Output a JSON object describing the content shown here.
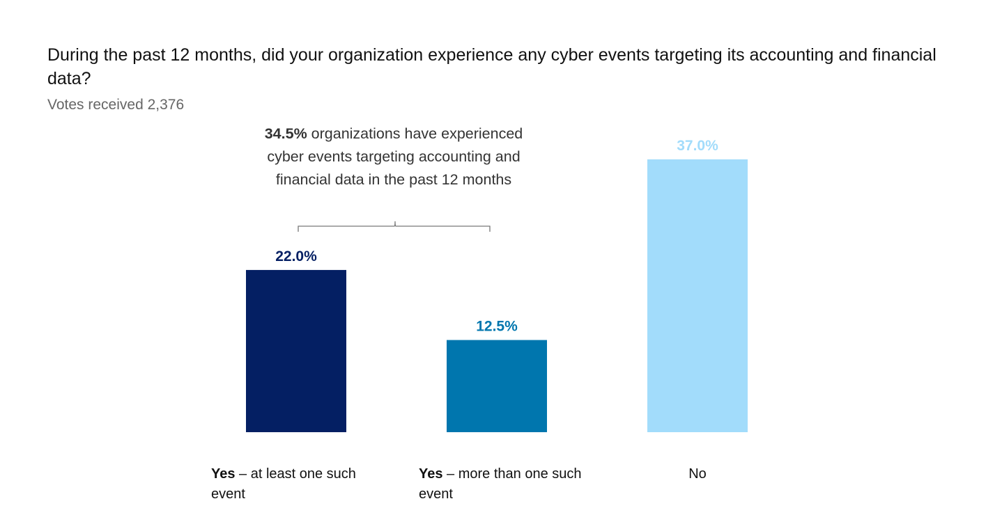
{
  "chart_data": {
    "type": "bar",
    "title": "During the past 12 months, did your organization experience any cyber events targeting its accounting and financial data?",
    "subtitle": "Votes received 2,376",
    "categories": [
      {
        "bold": "Yes",
        "rest": " – at least one such event"
      },
      {
        "bold": "Yes",
        "rest": " – more than one such event"
      },
      {
        "bold": "",
        "rest": "No"
      }
    ],
    "values": [
      22.0,
      12.5,
      37.0
    ],
    "value_labels": [
      "22.0%",
      "12.5%",
      "37.0%"
    ],
    "colors": [
      "#041f63",
      "#0076ae",
      "#a2dcfb"
    ],
    "ylim": [
      0,
      40
    ],
    "grid": false,
    "annotation": {
      "bold": "34.5%",
      "text": " organizations have experienced cyber events targeting accounting and financial data in the past 12 months"
    }
  }
}
